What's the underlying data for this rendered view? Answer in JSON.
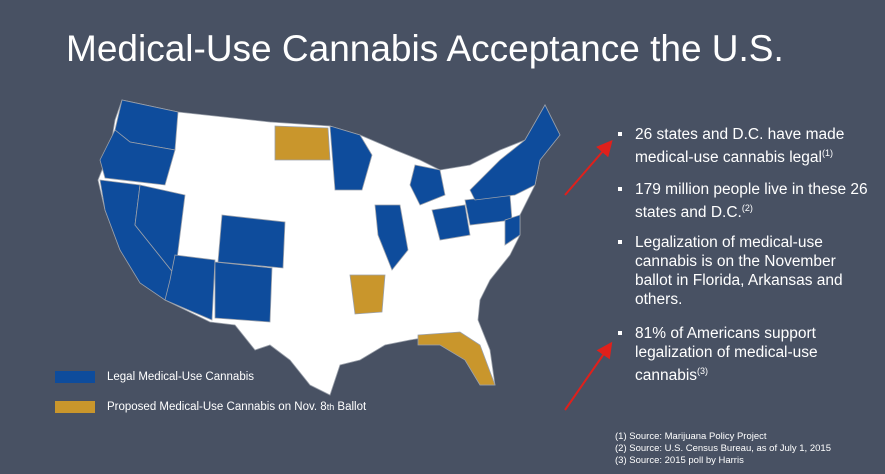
{
  "header": {
    "title": "Medical-Use Cannabis Acceptance the U.S."
  },
  "bullets": [
    {
      "text": "26 states and D.C. have made medical-use cannabis legal",
      "note": "(1)"
    },
    {
      "text": "179 million people live in these 26 states and D.C.",
      "note": "(2)"
    },
    {
      "text": "Legalization of medical-use cannabis is on the November ballot in Florida, Arkansas and others."
    },
    {
      "text": "81% of Americans support legalization of medical-use cannabis",
      "note": "(3)"
    }
  ],
  "legend": [
    {
      "label": "Legal Medical-Use Cannabis",
      "color": "#0e4c9c"
    },
    {
      "label": "Proposed Medical-Use Cannabis on Nov. 8",
      "sup": "th",
      "after": "Ballot",
      "color": "#c9962c"
    }
  ],
  "sources": [
    "(1) Source: Marijuana Policy Project",
    "(2) Source: U.S. Census Bureau, as of July 1, 2015",
    "(3) Source: 2015 poll by Harris"
  ]
}
